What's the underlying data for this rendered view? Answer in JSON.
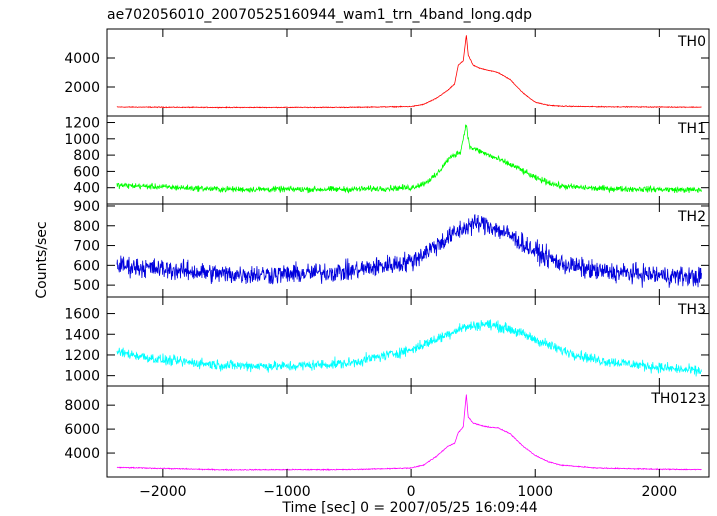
{
  "title": "ae702056010_20070525160944_wam1_trn_4band_long.qdp",
  "ylabel": "Counts/sec",
  "xlabel": "Time [sec] 0 = 2007/05/25 16:09:44",
  "chart_data": {
    "type": "line",
    "title": "ae702056010_20070525160944_wam1_trn_4band_long.qdp",
    "xlabel": "Time [sec] 0 = 2007/05/25 16:09:44",
    "ylabel": "Counts/sec",
    "xlim": [
      -2450,
      2400
    ],
    "xticks": [
      -2000,
      -1000,
      0,
      1000,
      2000
    ],
    "panels": [
      {
        "name": "TH0",
        "color": "#ff0000",
        "ylim": [
          0,
          6000
        ],
        "yticks": [
          2000,
          4000
        ],
        "noise": 30,
        "points": [
          [
            -2370,
            620
          ],
          [
            -1500,
            590
          ],
          [
            -500,
            600
          ],
          [
            0,
            650
          ],
          [
            100,
            800
          ],
          [
            200,
            1200
          ],
          [
            300,
            1800
          ],
          [
            350,
            2200
          ],
          [
            380,
            3500
          ],
          [
            420,
            3800
          ],
          [
            445,
            5600
          ],
          [
            460,
            4200
          ],
          [
            500,
            3500
          ],
          [
            550,
            3300
          ],
          [
            600,
            3200
          ],
          [
            700,
            3000
          ],
          [
            800,
            2500
          ],
          [
            900,
            1600
          ],
          [
            1000,
            950
          ],
          [
            1100,
            750
          ],
          [
            1200,
            680
          ],
          [
            1500,
            640
          ],
          [
            2000,
            620
          ],
          [
            2340,
            610
          ]
        ]
      },
      {
        "name": "TH1",
        "color": "#00ff00",
        "ylim": [
          200,
          1280
        ],
        "yticks": [
          400,
          600,
          800,
          1000,
          1200
        ],
        "noise": 40,
        "points": [
          [
            -2370,
            430
          ],
          [
            -1500,
            380
          ],
          [
            -500,
            380
          ],
          [
            0,
            400
          ],
          [
            100,
            450
          ],
          [
            200,
            550
          ],
          [
            300,
            750
          ],
          [
            400,
            850
          ],
          [
            445,
            1190
          ],
          [
            470,
            900
          ],
          [
            550,
            850
          ],
          [
            700,
            750
          ],
          [
            850,
            650
          ],
          [
            1000,
            520
          ],
          [
            1200,
            420
          ],
          [
            1500,
            390
          ],
          [
            2000,
            380
          ],
          [
            2340,
            370
          ]
        ]
      },
      {
        "name": "TH2",
        "color": "#0000dd",
        "ylim": [
          440,
          910
        ],
        "yticks": [
          500,
          600,
          700,
          800,
          900
        ],
        "noise": 55,
        "points": [
          [
            -2370,
            600
          ],
          [
            -1500,
            555
          ],
          [
            -1000,
            555
          ],
          [
            -500,
            570
          ],
          [
            0,
            620
          ],
          [
            200,
            700
          ],
          [
            400,
            780
          ],
          [
            500,
            810
          ],
          [
            600,
            810
          ],
          [
            800,
            750
          ],
          [
            1000,
            670
          ],
          [
            1200,
            610
          ],
          [
            1500,
            570
          ],
          [
            2000,
            550
          ],
          [
            2340,
            540
          ]
        ]
      },
      {
        "name": "TH3",
        "color": "#00ffff",
        "ylim": [
          900,
          1760
        ],
        "yticks": [
          1000,
          1200,
          1400,
          1600
        ],
        "noise": 55,
        "points": [
          [
            -2370,
            1230
          ],
          [
            -2000,
            1150
          ],
          [
            -1500,
            1100
          ],
          [
            -1000,
            1090
          ],
          [
            -500,
            1120
          ],
          [
            0,
            1250
          ],
          [
            200,
            1350
          ],
          [
            400,
            1460
          ],
          [
            600,
            1500
          ],
          [
            800,
            1450
          ],
          [
            1000,
            1350
          ],
          [
            1200,
            1250
          ],
          [
            1500,
            1150
          ],
          [
            2000,
            1080
          ],
          [
            2340,
            1040
          ]
        ]
      },
      {
        "name": "TH0123",
        "color": "#ff00ff",
        "ylim": [
          2000,
          9600
        ],
        "yticks": [
          4000,
          6000,
          8000
        ],
        "noise": 45,
        "points": [
          [
            -2370,
            2800
          ],
          [
            -1500,
            2600
          ],
          [
            -500,
            2620
          ],
          [
            0,
            2750
          ],
          [
            100,
            3000
          ],
          [
            200,
            3700
          ],
          [
            300,
            4600
          ],
          [
            350,
            4800
          ],
          [
            380,
            5700
          ],
          [
            420,
            6200
          ],
          [
            445,
            8900
          ],
          [
            460,
            7000
          ],
          [
            500,
            6500
          ],
          [
            600,
            6200
          ],
          [
            700,
            6100
          ],
          [
            800,
            5600
          ],
          [
            900,
            4600
          ],
          [
            1000,
            3800
          ],
          [
            1100,
            3300
          ],
          [
            1200,
            3000
          ],
          [
            1500,
            2750
          ],
          [
            2000,
            2650
          ],
          [
            2340,
            2620
          ]
        ]
      }
    ]
  }
}
